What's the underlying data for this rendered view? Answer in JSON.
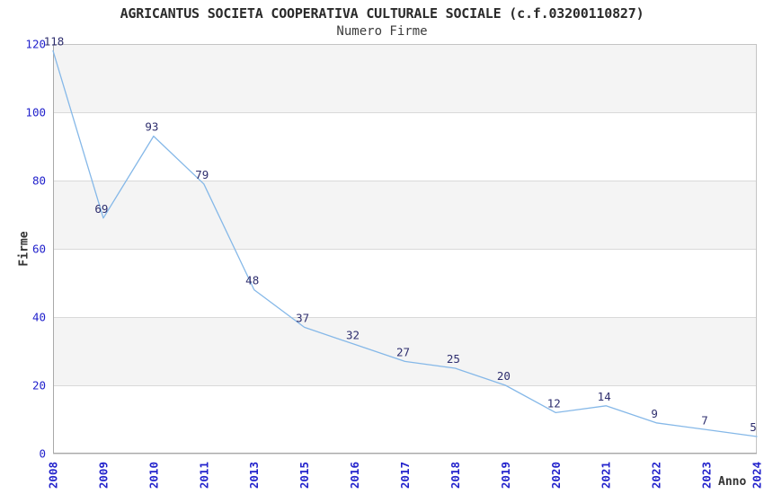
{
  "chart_data": {
    "type": "line",
    "title": "AGRICANTUS SOCIETA COOPERATIVA CULTURALE SOCIALE (c.f.03200110827)",
    "subtitle": "Numero Firme",
    "xlabel": "Anno",
    "ylabel": "Firme",
    "categories": [
      "2008",
      "2009",
      "2010",
      "2011",
      "2013",
      "2015",
      "2016",
      "2017",
      "2018",
      "2019",
      "2020",
      "2021",
      "2022",
      "2023",
      "2024"
    ],
    "values": [
      118,
      69,
      93,
      79,
      48,
      37,
      32,
      27,
      25,
      20,
      12,
      14,
      9,
      7,
      5
    ],
    "ylim": [
      0,
      120
    ],
    "yticks": [
      0,
      20,
      40,
      60,
      80,
      100,
      120
    ],
    "grid": "horizontal-bands",
    "legend": "none",
    "point_labels_shown": true,
    "colors": {
      "line": "#85B8E8",
      "tick_label": "#2222CC",
      "data_label": "#2E2E6E",
      "band_fill": "#F4F4F4",
      "grid_line": "#D9D9D9",
      "axis_border": "#C4C4C4",
      "axis_dark": "#A9A9A9",
      "title_text": "#2A2A2A",
      "axis_label_text": "#333333",
      "background": "#FFFFFF"
    }
  }
}
